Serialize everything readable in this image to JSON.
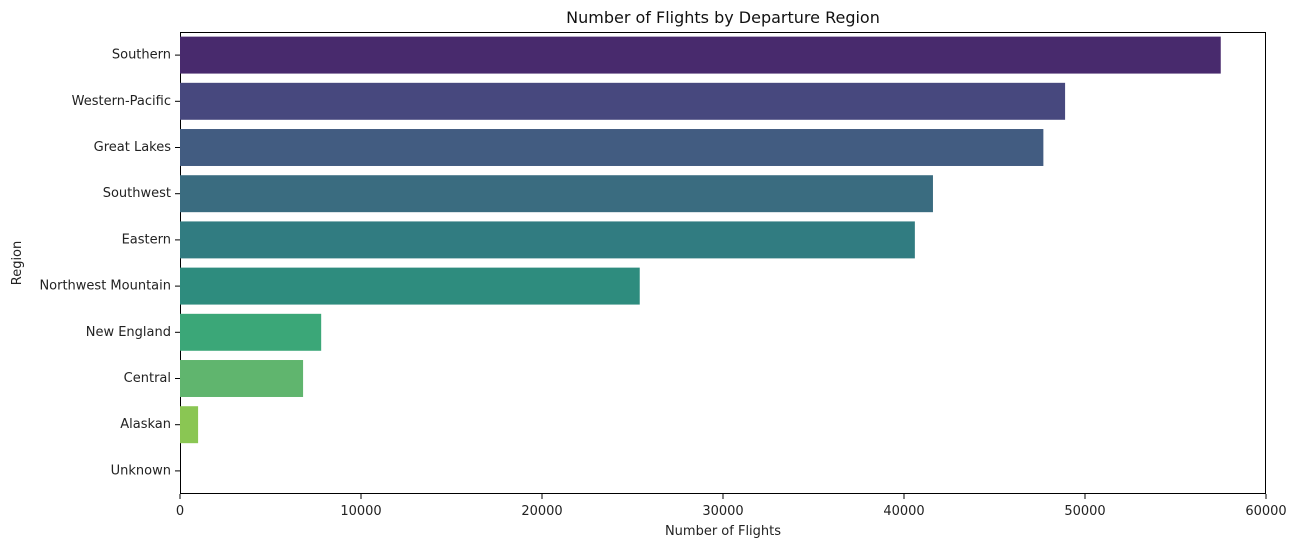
{
  "chart_data": {
    "type": "bar",
    "orientation": "horizontal",
    "title": "Number of Flights by Departure Region",
    "xlabel": "Number of Flights",
    "ylabel": "Region",
    "categories": [
      "Southern",
      "Western-Pacific",
      "Great Lakes",
      "Southwest",
      "Eastern",
      "Northwest Mountain",
      "New England",
      "Central",
      "Alaskan",
      "Unknown"
    ],
    "values": [
      57500,
      48900,
      47700,
      41600,
      40600,
      25400,
      7800,
      6800,
      1000,
      0
    ],
    "xlim": [
      0,
      60000
    ],
    "xticks": [
      0,
      10000,
      20000,
      30000,
      40000,
      50000,
      60000
    ],
    "xtick_labels": [
      "0",
      "10000",
      "20000",
      "30000",
      "40000",
      "50000",
      "60000"
    ],
    "colors": [
      "#482a6d",
      "#47487e",
      "#425c81",
      "#3a6c80",
      "#317c81",
      "#2e8c7e",
      "#3ba778",
      "#60b56e",
      "#8ac653",
      "#b8d64a"
    ],
    "grid": false,
    "legend": "none"
  }
}
